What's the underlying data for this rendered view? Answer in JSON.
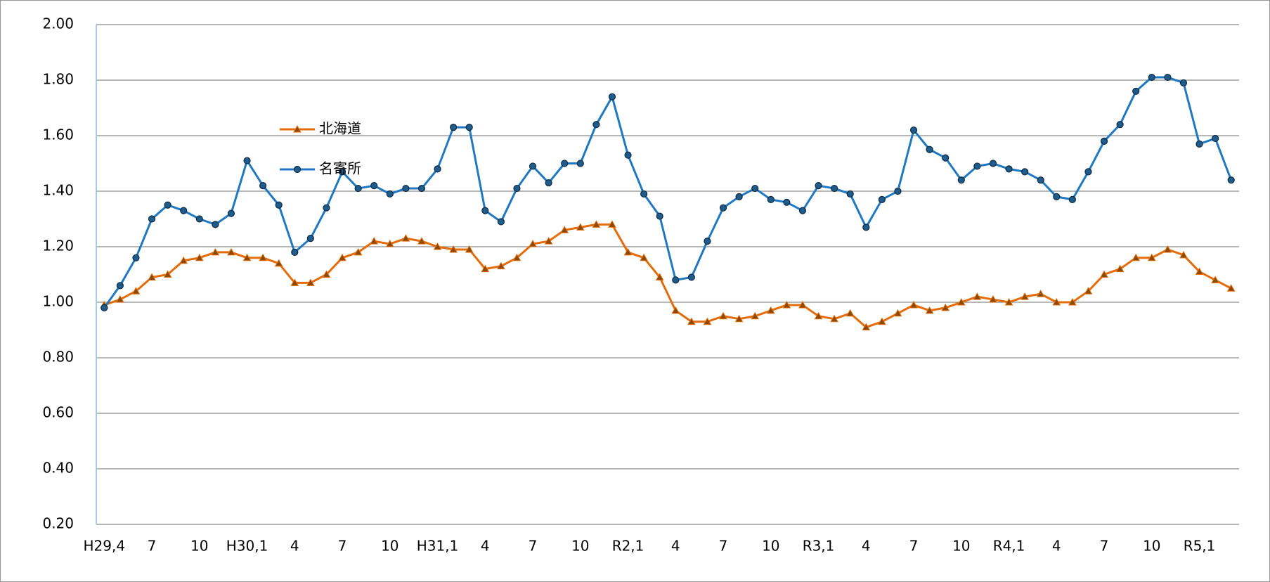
{
  "chart_data": {
    "type": "line",
    "categories": [
      "H29,4",
      null,
      null,
      "7",
      null,
      null,
      "10",
      null,
      null,
      "H30,1",
      null,
      null,
      "4",
      null,
      null,
      "7",
      null,
      null,
      "10",
      null,
      null,
      "H31,1",
      null,
      null,
      "4",
      null,
      null,
      "7",
      null,
      null,
      "10",
      null,
      null,
      "R2,1",
      null,
      null,
      "4",
      null,
      null,
      "7",
      null,
      null,
      "10",
      null,
      null,
      "R3,1",
      null,
      null,
      "4",
      null,
      null,
      "7",
      null,
      null,
      "10",
      null,
      null,
      "R4,1",
      null,
      null,
      "4",
      null,
      null,
      "7",
      null,
      null,
      "10",
      null,
      null,
      "R5,1",
      null,
      null
    ],
    "series": [
      {
        "name": "北海道",
        "color": "#e46c0a",
        "marker": "triangle",
        "values": [
          0.99,
          1.01,
          1.04,
          1.09,
          1.1,
          1.15,
          1.16,
          1.18,
          1.18,
          1.16,
          1.16,
          1.14,
          1.07,
          1.07,
          1.1,
          1.16,
          1.18,
          1.22,
          1.21,
          1.23,
          1.22,
          1.2,
          1.19,
          1.19,
          1.12,
          1.13,
          1.16,
          1.21,
          1.22,
          1.26,
          1.27,
          1.28,
          1.28,
          1.18,
          1.16,
          1.09,
          0.97,
          0.93,
          0.93,
          0.95,
          0.94,
          0.95,
          0.97,
          0.99,
          0.99,
          0.95,
          0.94,
          0.96,
          0.91,
          0.93,
          0.96,
          0.99,
          0.97,
          0.98,
          1.0,
          1.02,
          1.01,
          1.0,
          1.02,
          1.03,
          1.0,
          1.0,
          1.04,
          1.1,
          1.12,
          1.16,
          1.16,
          1.19,
          1.17,
          1.11,
          1.08,
          1.05
        ]
      },
      {
        "name": "名寄所",
        "color": "#1f78c1",
        "marker": "circle",
        "values": [
          0.98,
          1.06,
          1.16,
          1.3,
          1.35,
          1.33,
          1.3,
          1.28,
          1.32,
          1.51,
          1.42,
          1.35,
          1.18,
          1.23,
          1.34,
          1.47,
          1.41,
          1.42,
          1.39,
          1.41,
          1.41,
          1.48,
          1.63,
          1.63,
          1.33,
          1.29,
          1.41,
          1.49,
          1.43,
          1.5,
          1.5,
          1.64,
          1.74,
          1.53,
          1.39,
          1.31,
          1.08,
          1.09,
          1.22,
          1.34,
          1.38,
          1.41,
          1.37,
          1.36,
          1.33,
          1.42,
          1.41,
          1.39,
          1.27,
          1.37,
          1.4,
          1.62,
          1.55,
          1.52,
          1.44,
          1.49,
          1.5,
          1.48,
          1.47,
          1.44,
          1.38,
          1.37,
          1.47,
          1.58,
          1.64,
          1.76,
          1.81,
          1.81,
          1.79,
          1.57,
          1.59,
          1.44
        ]
      }
    ],
    "ylim": [
      0.2,
      2.0
    ],
    "yticks": [
      {
        "value": 0.2,
        "label": "0.20"
      },
      {
        "value": 0.4,
        "label": "0.40"
      },
      {
        "value": 0.6,
        "label": "0.60"
      },
      {
        "value": 0.8,
        "label": "0.80"
      },
      {
        "value": 1.0,
        "label": "1.00"
      },
      {
        "value": 1.2,
        "label": "1.20"
      },
      {
        "value": 1.4,
        "label": "1.40"
      },
      {
        "value": 1.6,
        "label": "1.60"
      },
      {
        "value": 1.8,
        "label": "1.80"
      },
      {
        "value": 2.0,
        "label": "2.00"
      }
    ],
    "grid": true
  }
}
